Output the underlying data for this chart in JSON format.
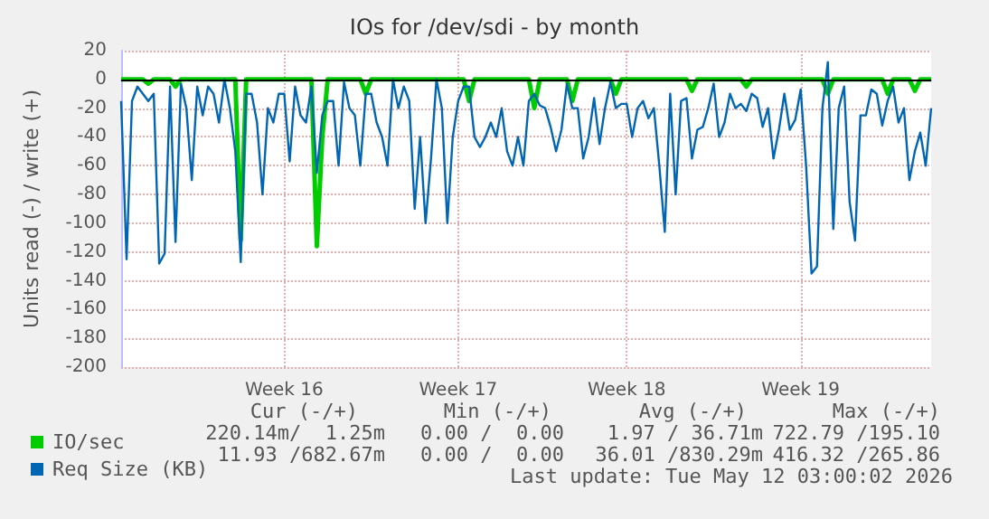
{
  "chart_data": {
    "type": "line",
    "title": "IOs for /dev/sdi - by month",
    "ylabel": "Units read (-) / write (+)",
    "categories": [
      null,
      null,
      null,
      null,
      null,
      null,
      null,
      null,
      null,
      null,
      null,
      null,
      null,
      null,
      null,
      null,
      null,
      null,
      null,
      null,
      null,
      null,
      null,
      null,
      null,
      null,
      null,
      null,
      null,
      null,
      "Week 16",
      null,
      null,
      null,
      null,
      null,
      null,
      null,
      null,
      null,
      null,
      null,
      null,
      null,
      null,
      null,
      null,
      null,
      null,
      null,
      null,
      null,
      null,
      null,
      null,
      null,
      null,
      null,
      null,
      null,
      null,
      null,
      "Week 17",
      null,
      null,
      null,
      null,
      null,
      null,
      null,
      null,
      null,
      null,
      null,
      null,
      null,
      null,
      null,
      null,
      null,
      null,
      null,
      null,
      null,
      null,
      null,
      null,
      null,
      null,
      null,
      null,
      null,
      null,
      "Week 18",
      null,
      null,
      null,
      null,
      null,
      null,
      null,
      null,
      null,
      null,
      null,
      null,
      null,
      null,
      null,
      null,
      null,
      null,
      null,
      null,
      null,
      null,
      null,
      null,
      null,
      null,
      null,
      null,
      null,
      null,
      null,
      "Week 19",
      null,
      null,
      null,
      null,
      null,
      null,
      null,
      null,
      null,
      null,
      null,
      null,
      null,
      null,
      null,
      null,
      null,
      null,
      null,
      null,
      null,
      null,
      null,
      null
    ],
    "ylim": [
      -200,
      20
    ],
    "yticks": [
      -200,
      -180,
      -160,
      -140,
      -120,
      -100,
      -80,
      -60,
      -40,
      -20,
      0,
      20
    ],
    "grid": true,
    "legend": "bottom left",
    "marker": "none",
    "line_style": "solid",
    "ref_lines": [
      {
        "axis": "y",
        "value": 0,
        "color": "#000000"
      }
    ],
    "series": [
      {
        "name": "IO/sec",
        "color": "#00cc00",
        "values": [
          0,
          0,
          0,
          0,
          0,
          -3,
          0,
          0,
          0,
          0,
          -5,
          0,
          0,
          0,
          0,
          0,
          0,
          0,
          0,
          0,
          0,
          0,
          -112,
          0,
          0,
          0,
          0,
          0,
          0,
          0,
          0,
          0,
          0,
          0,
          0,
          0,
          -116,
          -40,
          0,
          0,
          0,
          0,
          0,
          0,
          0,
          -10,
          0,
          0,
          0,
          0,
          0,
          0,
          0,
          0,
          0,
          0,
          0,
          0,
          0,
          0,
          0,
          0,
          0,
          0,
          -15,
          0,
          0,
          0,
          0,
          0,
          0,
          0,
          0,
          0,
          0,
          0,
          -20,
          0,
          0,
          0,
          0,
          0,
          0,
          -15,
          0,
          0,
          0,
          0,
          0,
          0,
          0,
          -10,
          0,
          0,
          0,
          0,
          0,
          0,
          0,
          0,
          0,
          0,
          0,
          0,
          0,
          -8,
          0,
          0,
          0,
          0,
          0,
          0,
          0,
          0,
          0,
          -5,
          0,
          0,
          0,
          0,
          0,
          0,
          0,
          0,
          0,
          0,
          0,
          0,
          0,
          0,
          -10,
          0,
          0,
          0,
          0,
          0,
          0,
          0,
          0,
          0,
          0,
          -10,
          0,
          0,
          0,
          0,
          -8,
          0,
          0,
          0
        ]
      },
      {
        "name": "Req Size (KB)",
        "color": "#0066b3",
        "values": [
          -15,
          -125,
          -15,
          -5,
          -10,
          -15,
          -10,
          -128,
          -121,
          -5,
          -113,
          -3,
          -20,
          -70,
          -5,
          -25,
          -5,
          -10,
          -30,
          0,
          -20,
          -50,
          -127,
          -10,
          -10,
          -30,
          -80,
          -20,
          -30,
          -10,
          -10,
          -57,
          -5,
          -25,
          -30,
          -5,
          -65,
          -25,
          -15,
          -15,
          -60,
          -2,
          -20,
          -25,
          -60,
          -10,
          -10,
          -30,
          -40,
          -60,
          0,
          -20,
          -5,
          -15,
          -90,
          -40,
          -100,
          -55,
          0,
          -20,
          -100,
          -40,
          -15,
          -5,
          -5,
          -40,
          -47,
          -40,
          -30,
          -40,
          -20,
          -50,
          -60,
          -40,
          -60,
          -15,
          -10,
          -18,
          -20,
          -33,
          -50,
          -35,
          -3,
          -20,
          -20,
          -55,
          -40,
          -13,
          -45,
          -20,
          -2,
          -20,
          -17,
          -17,
          -40,
          -20,
          -15,
          -27,
          -20,
          -60,
          -106,
          -10,
          -80,
          -15,
          -13,
          -55,
          -35,
          -33,
          -20,
          -3,
          -40,
          -30,
          -10,
          -20,
          -17,
          -22,
          -10,
          -13,
          -33,
          -20,
          -55,
          -35,
          -10,
          -35,
          -28,
          -7,
          -60,
          -135,
          -130,
          -20,
          12,
          -104,
          -20,
          -5,
          -85,
          -112,
          -25,
          -25,
          -7,
          -10,
          -32,
          -15,
          -5,
          -30,
          -20,
          -70,
          -50,
          -37,
          -60,
          -20
        ]
      }
    ],
    "annotations": [
      "Cur (-/+)",
      "Min (-/+)",
      "Avg (-/+)",
      "Max (-/+)",
      "220.14m/  1.25m",
      "0.00 /  0.00",
      "1.97 / 36.71m",
      "722.79 /195.10",
      "11.93 /682.67m",
      "0.00 /  0.00",
      "36.01 /830.29m",
      "416.32 /265.86",
      "Last update: Tue May 12 03:00:02 2026"
    ]
  }
}
